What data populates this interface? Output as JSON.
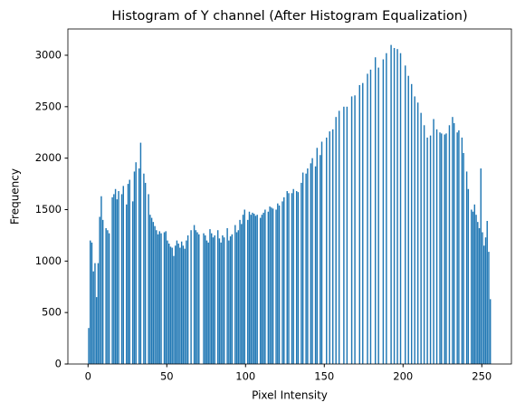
{
  "chart_data": {
    "type": "histogram",
    "title": "Histogram of Y channel (After Histogram Equalization)",
    "x_label": "Pixel Intensity",
    "y_label": "Frequency",
    "color": "#1f77b4",
    "bins": [
      0,
      1,
      2,
      3,
      4,
      5,
      6,
      7,
      8,
      9,
      10,
      11,
      12,
      13,
      14,
      15,
      16,
      17,
      18,
      19,
      20,
      21,
      22,
      23,
      24,
      25,
      26,
      27,
      28,
      29,
      30,
      31,
      32,
      33,
      34,
      35,
      36,
      37,
      38,
      39,
      40,
      41,
      42,
      43,
      44,
      45,
      46,
      47,
      48,
      49,
      50,
      51,
      52,
      53,
      54,
      55,
      56,
      57,
      58,
      59,
      60,
      61,
      62,
      63,
      64,
      65,
      66,
      67,
      68,
      69,
      70,
      71,
      72,
      73,
      74,
      75,
      76,
      77,
      78,
      79,
      80,
      81,
      82,
      83,
      84,
      85,
      86,
      87,
      88,
      89,
      90,
      91,
      92,
      93,
      94,
      95,
      96,
      97,
      98,
      99,
      100,
      101,
      102,
      103,
      104,
      105,
      106,
      107,
      108,
      109,
      110,
      111,
      112,
      113,
      114,
      115,
      116,
      117,
      118,
      119,
      120,
      121,
      122,
      123,
      124,
      125,
      126,
      127,
      128,
      129,
      130,
      131,
      132,
      133,
      134,
      135,
      136,
      137,
      138,
      139,
      140,
      141,
      142,
      143,
      144,
      145,
      146,
      147,
      148,
      149,
      150,
      151,
      152,
      153,
      154,
      155,
      156,
      157,
      158,
      159,
      160,
      161,
      162,
      163,
      164,
      165,
      166,
      167,
      168,
      169,
      170,
      171,
      172,
      173,
      174,
      175,
      176,
      177,
      178,
      179,
      180,
      181,
      182,
      183,
      184,
      185,
      186,
      187,
      188,
      189,
      190,
      191,
      192,
      193,
      194,
      195,
      196,
      197,
      198,
      199,
      200,
      201,
      202,
      203,
      204,
      205,
      206,
      207,
      208,
      209,
      210,
      211,
      212,
      213,
      214,
      215,
      216,
      217,
      218,
      219,
      220,
      221,
      222,
      223,
      224,
      225,
      226,
      227,
      228,
      229,
      230,
      231,
      232,
      233,
      234,
      235,
      236,
      237,
      238,
      239,
      240,
      241,
      242,
      243,
      244,
      245,
      246,
      247,
      248,
      249,
      250,
      251,
      252,
      253,
      254,
      255,
      256
    ],
    "values": [
      350,
      1200,
      1180,
      900,
      980,
      650,
      980,
      1430,
      1630,
      1400,
      0,
      1320,
      1300,
      1270,
      0,
      1620,
      1650,
      1700,
      1600,
      1680,
      0,
      1650,
      1730,
      0,
      1550,
      1750,
      1790,
      0,
      1580,
      1870,
      1960,
      0,
      1900,
      2150,
      0,
      1850,
      1760,
      0,
      1650,
      1450,
      1420,
      1380,
      1340,
      1300,
      1260,
      1290,
      1270,
      0,
      1280,
      1290,
      1200,
      1170,
      1140,
      1130,
      1050,
      1150,
      1200,
      1170,
      1130,
      1190,
      1150,
      1120,
      1200,
      1250,
      0,
      1300,
      0,
      1350,
      1300,
      1280,
      1260,
      0,
      0,
      1270,
      1250,
      1200,
      1180,
      1310,
      1270,
      1230,
      1250,
      0,
      1300,
      1220,
      1180,
      1250,
      1230,
      0,
      1320,
      1200,
      1240,
      1260,
      0,
      1350,
      1280,
      1300,
      1400,
      1360,
      1450,
      1500,
      0,
      1400,
      1480,
      1450,
      1470,
      1460,
      1440,
      1450,
      0,
      1420,
      1450,
      1470,
      1500,
      0,
      1480,
      1530,
      1520,
      1510,
      0,
      1500,
      1560,
      1540,
      0,
      1580,
      1620,
      0,
      1680,
      1660,
      0,
      1660,
      1700,
      0,
      1680,
      1670,
      0,
      1760,
      1860,
      0,
      1850,
      1900,
      0,
      1950,
      2000,
      0,
      1920,
      2100,
      0,
      2030,
      2160,
      0,
      0,
      2200,
      0,
      2260,
      0,
      2280,
      0,
      2400,
      0,
      2460,
      0,
      0,
      2500,
      0,
      2500,
      0,
      0,
      2600,
      0,
      2610,
      0,
      0,
      2710,
      0,
      2730,
      0,
      0,
      2820,
      0,
      2860,
      0,
      0,
      2980,
      0,
      2880,
      0,
      0,
      2960,
      0,
      3020,
      0,
      0,
      3100,
      0,
      3070,
      0,
      3060,
      0,
      3020,
      0,
      0,
      2900,
      0,
      2800,
      0,
      2720,
      0,
      2600,
      0,
      2540,
      0,
      2440,
      0,
      2320,
      0,
      2200,
      0,
      2220,
      0,
      2380,
      0,
      2280,
      0,
      2250,
      2240,
      0,
      2230,
      2240,
      0,
      2320,
      0,
      2400,
      2340,
      0,
      2250,
      2270,
      0,
      2200,
      2050,
      0,
      1870,
      1700,
      0,
      1500,
      1480,
      1550,
      1450,
      1380,
      1320,
      1900,
      1280,
      1150,
      1230,
      1390,
      1090,
      630
    ],
    "xlim": [
      -12.8,
      268.8
    ],
    "xticks": [
      0,
      50,
      100,
      150,
      200,
      250
    ],
    "ylim": [
      0,
      3255
    ],
    "yticks": [
      0,
      500,
      1000,
      1500,
      2000,
      2500,
      3000
    ]
  }
}
